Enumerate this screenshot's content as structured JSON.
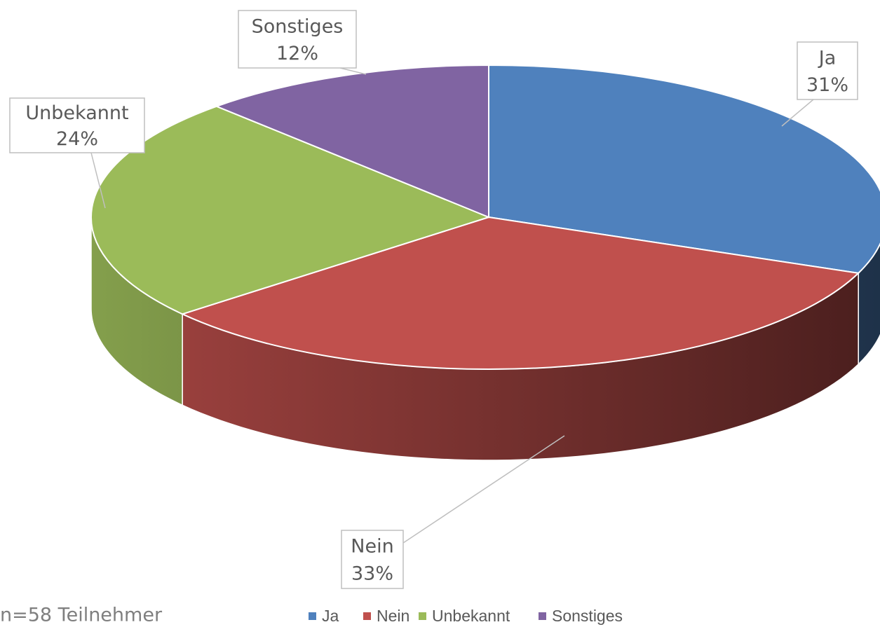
{
  "chart_data": {
    "type": "pie",
    "categories": [
      "Ja",
      "Nein",
      "Unbekannt",
      "Sonstiges"
    ],
    "values": [
      31,
      33,
      24,
      12
    ],
    "value_labels": [
      "31%",
      "33%",
      "24%",
      "12%"
    ],
    "colors": [
      "#4f81bd",
      "#c0504d",
      "#9bbb59",
      "#8064a2"
    ],
    "annotation": "n=58 Teilnehmer",
    "legend": "bottom"
  }
}
